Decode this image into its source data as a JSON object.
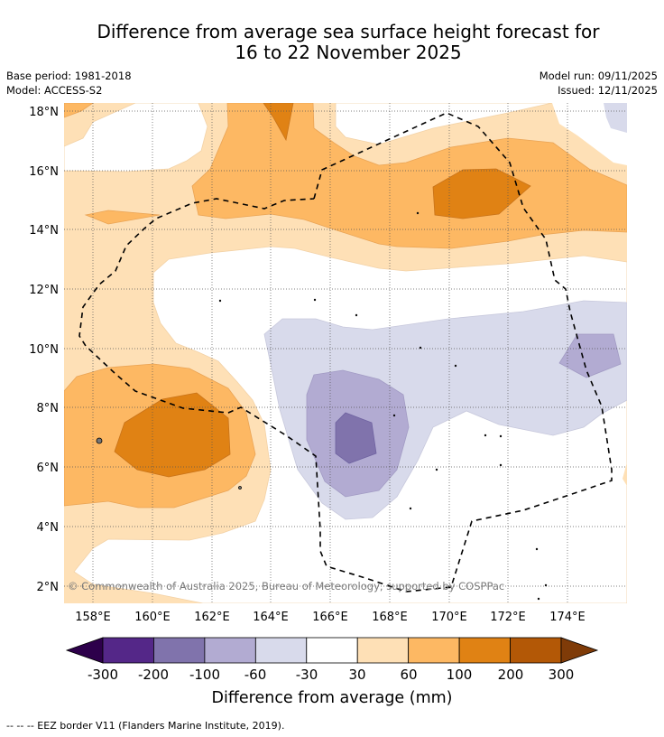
{
  "header": {
    "title_line1": "Difference from average sea surface height forecast for",
    "title_line2": "16 to 22 November 2025",
    "base_period": "Base period: 1981-2018",
    "model": "Model: ACCESS-S2",
    "model_run": "Model run: 09/11/2025",
    "issued": "Issued: 12/11/2025"
  },
  "map": {
    "lon_labels": [
      "158°E",
      "160°E",
      "162°E",
      "164°E",
      "166°E",
      "168°E",
      "170°E",
      "172°E",
      "174°E"
    ],
    "lat_labels": [
      "18°N",
      "16°N",
      "14°N",
      "12°N",
      "10°N",
      "8°N",
      "6°N",
      "4°N",
      "2°N"
    ],
    "copyright": "© Commonwealth of Australia 2025, Bureau of Meteorology, supported by COSPPac"
  },
  "colorbar": {
    "labels": [
      "-300",
      "-200",
      "-100",
      "-60",
      "-30",
      "30",
      "60",
      "100",
      "200",
      "300"
    ],
    "colors": {
      "below_min": "#2d004b",
      "bins": [
        "#542788",
        "#8073ac",
        "#b2abd2",
        "#d8daeb",
        "#ffffff",
        "#fee0b6",
        "#fdb863",
        "#e08214",
        "#b35806"
      ],
      "above_max": "#7f3b08"
    },
    "title": "Difference from average (mm)"
  },
  "footer": {
    "eez_legend": "--  --  -- EEZ border V11 (Flanders Marine Institute, 2019)."
  }
}
